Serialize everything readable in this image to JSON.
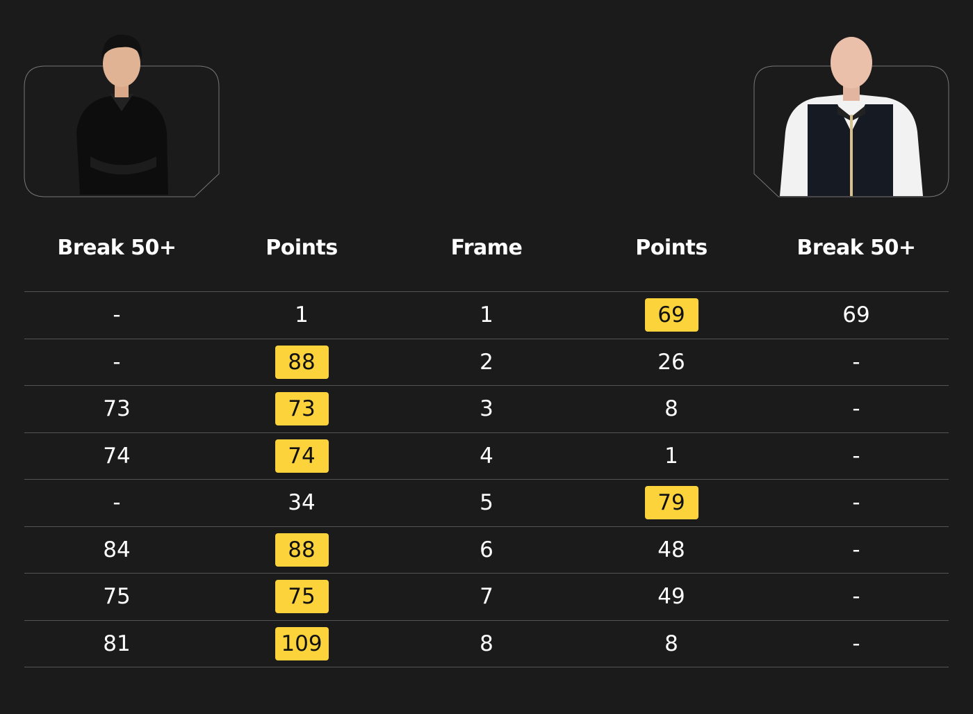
{
  "colors": {
    "background": "#1b1b1b",
    "highlight": "#fdd33c",
    "divider": "#555555"
  },
  "players": [
    {
      "side": "left",
      "image": "player-photo-left"
    },
    {
      "side": "right",
      "image": "player-photo-right"
    }
  ],
  "header": {
    "columns": [
      "Break 50+",
      "Points",
      "Frame",
      "Points",
      "Break 50+"
    ]
  },
  "rows": [
    {
      "break_left": "-",
      "points_left": "1",
      "frame": "1",
      "points_right": "69",
      "break_right": "69",
      "winner": "right"
    },
    {
      "break_left": "-",
      "points_left": "88",
      "frame": "2",
      "points_right": "26",
      "break_right": "-",
      "winner": "left"
    },
    {
      "break_left": "73",
      "points_left": "73",
      "frame": "3",
      "points_right": "8",
      "break_right": "-",
      "winner": "left"
    },
    {
      "break_left": "74",
      "points_left": "74",
      "frame": "4",
      "points_right": "1",
      "break_right": "-",
      "winner": "left"
    },
    {
      "break_left": "-",
      "points_left": "34",
      "frame": "5",
      "points_right": "79",
      "break_right": "-",
      "winner": "right"
    },
    {
      "break_left": "84",
      "points_left": "88",
      "frame": "6",
      "points_right": "48",
      "break_right": "-",
      "winner": "left"
    },
    {
      "break_left": "75",
      "points_left": "75",
      "frame": "7",
      "points_right": "49",
      "break_right": "-",
      "winner": "left"
    },
    {
      "break_left": "81",
      "points_left": "109",
      "frame": "8",
      "points_right": "8",
      "break_right": "-",
      "winner": "left"
    }
  ]
}
